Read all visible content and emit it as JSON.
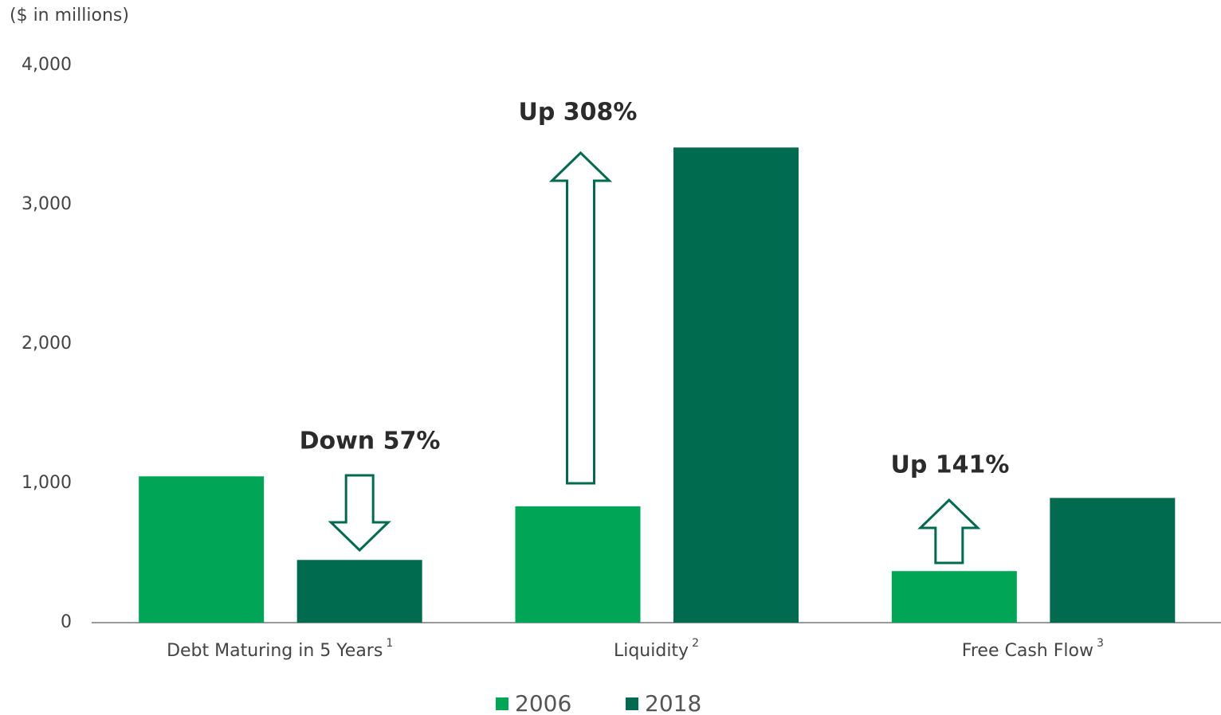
{
  "chart_data": {
    "type": "bar",
    "y_label": "($ in millions)",
    "categories": [
      "Debt Maturing in 5 Years",
      "Liquidity",
      "Free Cash Flow"
    ],
    "footnotes": [
      "1",
      "2",
      "3"
    ],
    "series": [
      {
        "name": "2006",
        "color": "#00a555",
        "values": [
          1050,
          835,
          370
        ]
      },
      {
        "name": "2018",
        "color": "#006b4f",
        "values": [
          450,
          3410,
          895
        ]
      }
    ],
    "annotations": [
      "Down 57%",
      "Up 308%",
      "Up 141%"
    ],
    "ylim": [
      0,
      4000
    ],
    "yticks": [
      {
        "value": 0,
        "label": "0"
      },
      {
        "value": 1000,
        "label": "1,000"
      },
      {
        "value": 2000,
        "label": "2,000"
      },
      {
        "value": 3000,
        "label": "3,000"
      },
      {
        "value": 4000,
        "label": "4,000"
      }
    ],
    "grid": false,
    "legend": "bottom"
  }
}
